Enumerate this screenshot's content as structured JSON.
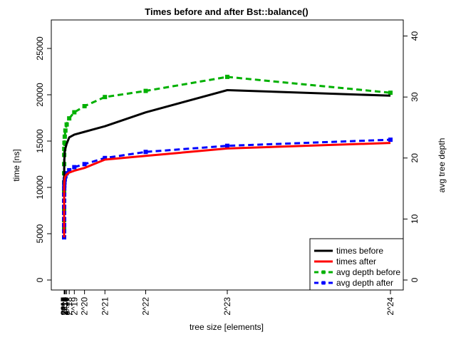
{
  "chart_data": {
    "type": "line",
    "title": "Times before and after Bst::balance()",
    "xlabel": "tree size [elements]",
    "ylabel": "time [ns]",
    "y2label": "avg tree depth",
    "xlim": [
      0,
      16777216
    ],
    "ylim": [
      0,
      27000
    ],
    "y2lim": [
      0,
      41
    ],
    "y_ticks": [
      0,
      5000,
      10000,
      15000,
      20000,
      25000
    ],
    "y2_ticks": [
      0,
      10,
      20,
      30,
      40
    ],
    "x_ticks": [
      {
        "value": 16,
        "label": "2^4"
      },
      {
        "value": 32,
        "label": "2^5"
      },
      {
        "value": 64,
        "label": "2^6"
      },
      {
        "value": 128,
        "label": "2^7"
      },
      {
        "value": 256,
        "label": "2^8"
      },
      {
        "value": 512,
        "label": "2^9"
      },
      {
        "value": 1024,
        "label": "2^10"
      },
      {
        "value": 2048,
        "label": "2^11"
      },
      {
        "value": 4096,
        "label": "2^12"
      },
      {
        "value": 8192,
        "label": "2^13"
      },
      {
        "value": 16384,
        "label": "2^14"
      },
      {
        "value": 32768,
        "label": "2^15"
      },
      {
        "value": 65536,
        "label": "2^16"
      },
      {
        "value": 131072,
        "label": "2^17"
      },
      {
        "value": 262144,
        "label": "2^18"
      },
      {
        "value": 524288,
        "label": "2^19"
      },
      {
        "value": 1048576,
        "label": "2^20"
      },
      {
        "value": 2097152,
        "label": "2^21"
      },
      {
        "value": 4194304,
        "label": "2^22"
      },
      {
        "value": 8388608,
        "label": "2^23"
      },
      {
        "value": 16777216,
        "label": "2^24"
      }
    ],
    "x": [
      16,
      32,
      64,
      128,
      256,
      512,
      1024,
      2048,
      4096,
      8192,
      16384,
      32768,
      65536,
      131072,
      262144,
      524288,
      1048576,
      2097152,
      4194304,
      8388608,
      16777216
    ],
    "series": [
      {
        "name": "times before",
        "axis": "left",
        "color": "#000000",
        "dashed": false,
        "markers": false,
        "values": [
          4600,
          5600,
          6600,
          7600,
          8600,
          9500,
          10200,
          11200,
          12000,
          12600,
          13200,
          13800,
          14200,
          14700,
          15400,
          15700,
          16000,
          16600,
          18100,
          20500,
          19900
        ]
      },
      {
        "name": "times after",
        "axis": "left",
        "color": "#ff0000",
        "dashed": false,
        "markers": false,
        "values": [
          4600,
          5500,
          6400,
          7200,
          8000,
          8600,
          9200,
          9700,
          10100,
          10400,
          10700,
          11000,
          11200,
          11400,
          11600,
          11800,
          12100,
          13000,
          13400,
          14200,
          14800
        ]
      },
      {
        "name": "avg depth before",
        "axis": "right",
        "color": "#00b000",
        "dashed": true,
        "markers": true,
        "values": [
          8.3,
          9.8,
          11.5,
          13,
          14.5,
          16,
          17.5,
          19,
          20.5,
          21.5,
          22.5,
          23.5,
          24.5,
          25.5,
          26.5,
          27.5,
          28.5,
          30,
          31,
          33.3,
          30.7
        ]
      },
      {
        "name": "avg depth after",
        "axis": "right",
        "color": "#0000ff",
        "dashed": true,
        "markers": true,
        "values": [
          7,
          8,
          9,
          10,
          11,
          12,
          13,
          14,
          15,
          15.5,
          16,
          16.5,
          17,
          17.5,
          18,
          18.5,
          19,
          20,
          21,
          22,
          23
        ]
      }
    ],
    "legend_position": "bottom-right"
  }
}
